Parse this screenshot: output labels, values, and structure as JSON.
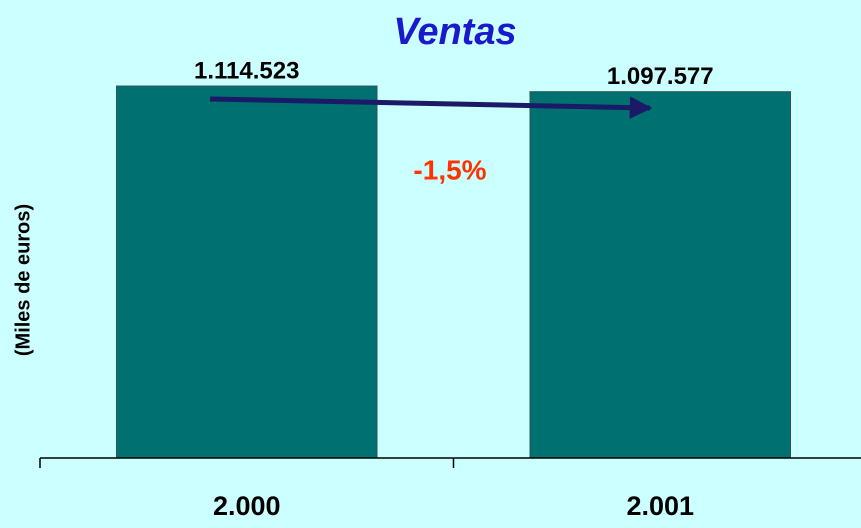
{
  "chart_data": {
    "type": "bar",
    "title": "Ventas",
    "y_label": "(Miles de euros)",
    "categories": [
      "2.000",
      "2.001"
    ],
    "values": [
      1114523,
      1097577
    ],
    "value_labels": [
      "1.114.523",
      "1.097.577"
    ],
    "color": "#007070",
    "annotation": "-1,5%",
    "ylim": [
      0,
      1200000
    ]
  }
}
